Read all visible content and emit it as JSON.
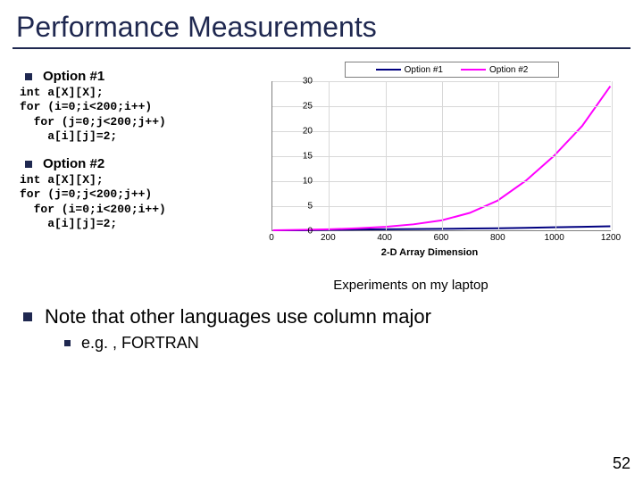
{
  "title": "Performance Measurements",
  "bullet_color": "#1f2850",
  "option1": {
    "label": "Option #1",
    "code": "int a[X][X];\nfor (i=0;i<200;i++)\n  for (j=0;j<200;j++)\n    a[i][j]=2;"
  },
  "option2": {
    "label": "Option #2",
    "code": "int a[X][X];\nfor (j=0;j<200;j++)\n  for (i=0;i<200;i++)\n    a[i][j]=2;"
  },
  "chart": {
    "type": "line",
    "legend": [
      {
        "label": "Option #1",
        "color": "#000080"
      },
      {
        "label": "Option #2",
        "color": "#ff00ff"
      }
    ],
    "xlabel": "2-D Array Dimension",
    "xlim": [
      0,
      1200
    ],
    "xtick_step": 200,
    "ylim": [
      0,
      30
    ],
    "ytick_step": 5,
    "grid_color": "#d8d8d8",
    "axis_color": "#808080",
    "background_color": "#ffffff",
    "label_fontsize": 10,
    "line_width": 2,
    "series": [
      {
        "name": "Option #1",
        "color": "#000080",
        "x": [
          0,
          100,
          200,
          300,
          400,
          500,
          600,
          700,
          800,
          900,
          1000,
          1100,
          1200
        ],
        "y": [
          0,
          0,
          0.1,
          0.15,
          0.2,
          0.25,
          0.3,
          0.35,
          0.4,
          0.5,
          0.6,
          0.7,
          0.8
        ]
      },
      {
        "name": "Option #2",
        "color": "#ff00ff",
        "x": [
          0,
          100,
          200,
          300,
          400,
          500,
          600,
          700,
          800,
          900,
          1000,
          1100,
          1200
        ],
        "y": [
          0,
          0.1,
          0.2,
          0.4,
          0.7,
          1.2,
          2.0,
          3.5,
          6.0,
          10.0,
          15.0,
          21.0,
          29.0
        ]
      }
    ]
  },
  "caption": "Experiments on my laptop",
  "note": "Note that other languages use column major",
  "subnote": "e.g. , FORTRAN",
  "page_number": "52"
}
